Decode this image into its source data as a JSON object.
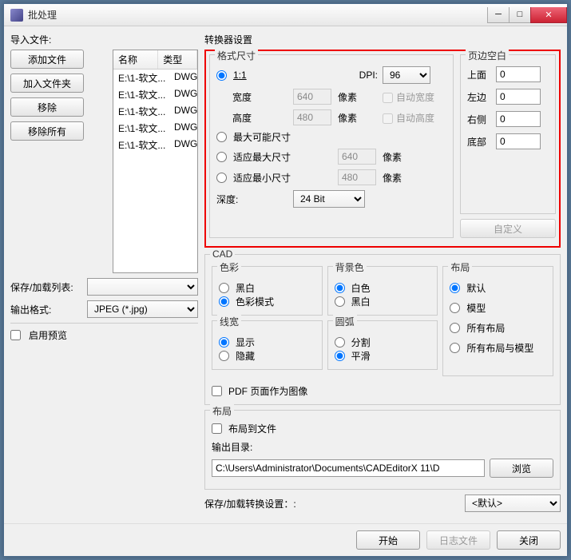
{
  "window": {
    "title": "批处理"
  },
  "import": {
    "label": "导入文件:",
    "addFile": "添加文件",
    "addFolder": "加入文件夹",
    "remove": "移除",
    "removeAll": "移除所有",
    "col_name": "名称",
    "col_type": "类型",
    "files": [
      {
        "path": "E:\\1-软文...",
        "type": "DWG"
      },
      {
        "path": "E:\\1-软文...",
        "type": "DWG"
      },
      {
        "path": "E:\\1-软文...",
        "type": "DWG"
      },
      {
        "path": "E:\\1-软文...",
        "type": "DWG"
      },
      {
        "path": "E:\\1-软文...",
        "type": "DWG"
      }
    ]
  },
  "saveLoadList": {
    "label": "保存/加载列表:"
  },
  "outputFormat": {
    "label": "输出格式:",
    "value": "JPEG (*.jpg)"
  },
  "enablePreview": "启用预览",
  "converter": {
    "title": "转换器设置",
    "formatSize": "格式尺寸",
    "oneToOne": "1:1",
    "dpiLabel": "DPI:",
    "dpi": "96",
    "widthLabel": "宽度",
    "width": "640",
    "widthUnit": "像素",
    "autoWidth": "自动宽度",
    "heightLabel": "高度",
    "height": "480",
    "heightUnit": "像素",
    "autoHeight": "自动高度",
    "maxPossible": "最大可能尺寸",
    "fitMaxLabel": "适应最大尺寸",
    "fitMax": "640",
    "fitMaxUnit": "像素",
    "fitMinLabel": "适应最小尺寸",
    "fitMin": "480",
    "fitMinUnit": "像素",
    "depthLabel": "深度:",
    "depth": "24 Bit",
    "margins": {
      "title": "页边空白",
      "top": "上面",
      "topV": "0",
      "left": "左边",
      "leftV": "0",
      "right": "右侧",
      "rightV": "0",
      "bottom": "底部",
      "bottomV": "0"
    },
    "customBtn": "自定义"
  },
  "cad": {
    "title": "CAD",
    "color": {
      "title": "色彩",
      "bw": "黑白",
      "mode": "色彩模式"
    },
    "bgcolor": {
      "title": "背景色",
      "white": "白色",
      "black": "黑白"
    },
    "layout": {
      "title": "布局",
      "default": "默认",
      "model": "模型",
      "all": "所有布局",
      "allModel": "所有布局与模型"
    },
    "linewidth": {
      "title": "线宽",
      "show": "显示",
      "hide": "隐藏"
    },
    "arc": {
      "title": "圆弧",
      "split": "分割",
      "smooth": "平滑"
    }
  },
  "pdfAsImage": "PDF 页面作为图像",
  "layoutOut": {
    "title": "布局",
    "toFile": "布局到文件",
    "outDirLabel": "输出目录:",
    "outDir": "C:\\Users\\Administrator\\Documents\\CADEditorX 11\\D",
    "browse": "浏览"
  },
  "saveLoadConv": {
    "label": "保存/加载转换设置：:",
    "value": "<默认>"
  },
  "footer": {
    "start": "开始",
    "log": "日志文件",
    "close": "关闭"
  }
}
